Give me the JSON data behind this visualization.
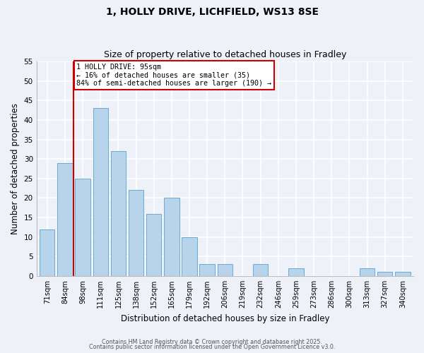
{
  "title1": "1, HOLLY DRIVE, LICHFIELD, WS13 8SE",
  "title2": "Size of property relative to detached houses in Fradley",
  "xlabel": "Distribution of detached houses by size in Fradley",
  "ylabel": "Number of detached properties",
  "bar_labels": [
    "71sqm",
    "84sqm",
    "98sqm",
    "111sqm",
    "125sqm",
    "138sqm",
    "152sqm",
    "165sqm",
    "179sqm",
    "192sqm",
    "206sqm",
    "219sqm",
    "232sqm",
    "246sqm",
    "259sqm",
    "273sqm",
    "286sqm",
    "300sqm",
    "313sqm",
    "327sqm",
    "340sqm"
  ],
  "bar_values": [
    12,
    29,
    25,
    43,
    32,
    22,
    16,
    20,
    10,
    3,
    3,
    0,
    3,
    0,
    2,
    0,
    0,
    0,
    2,
    1,
    1
  ],
  "bar_color": "#b8d4ea",
  "bar_edgecolor": "#6aaad4",
  "vline_color": "#cc0000",
  "ylim": [
    0,
    55
  ],
  "yticks": [
    0,
    5,
    10,
    15,
    20,
    25,
    30,
    35,
    40,
    45,
    50,
    55
  ],
  "annotation_text": "1 HOLLY DRIVE: 95sqm\n← 16% of detached houses are smaller (35)\n84% of semi-detached houses are larger (190) →",
  "annotation_box_color": "#ffffff",
  "annotation_box_edgecolor": "#cc0000",
  "footer1": "Contains HM Land Registry data © Crown copyright and database right 2025.",
  "footer2": "Contains public sector information licensed under the Open Government Licence v3.0.",
  "bg_color": "#eef2f8",
  "grid_color": "#ffffff"
}
